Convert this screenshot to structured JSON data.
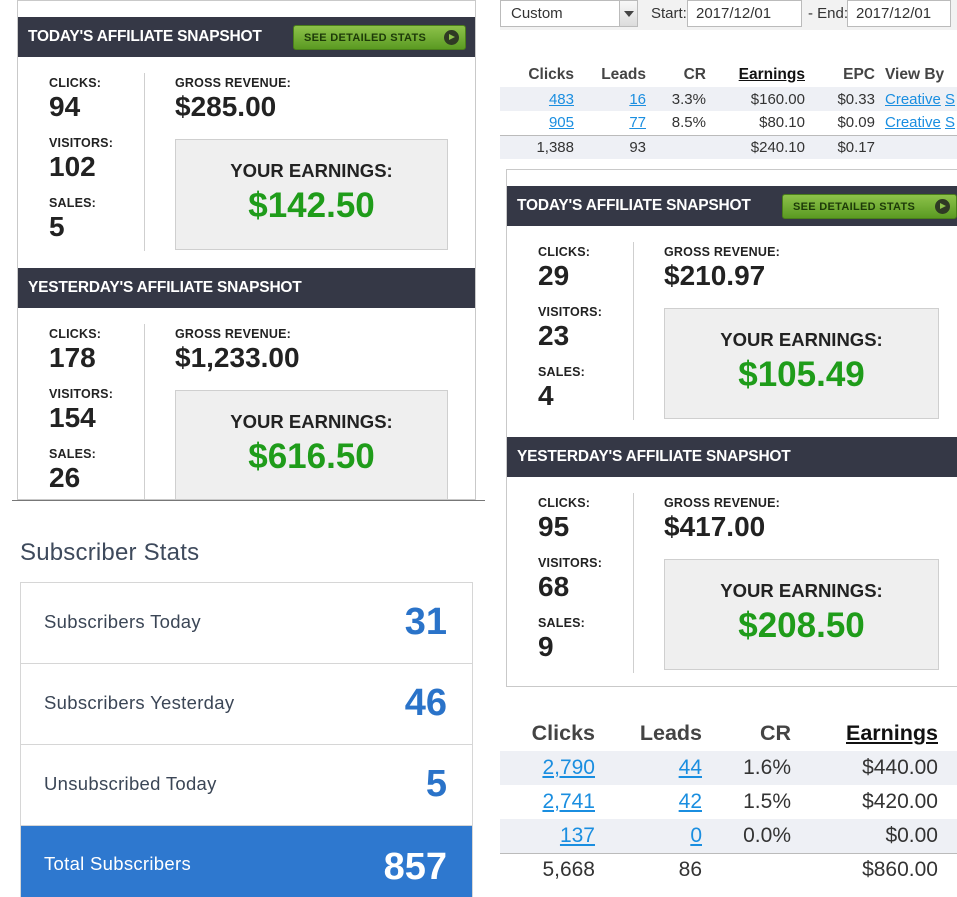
{
  "colors": {
    "header_dark": "#353846",
    "earnings_green": "#1f9c1a",
    "link_blue": "#1a8ee0",
    "subscriber_blue": "#2a73c9"
  },
  "left_panel": {
    "today": {
      "title": "TODAY'S AFFILIATE SNAPSHOT",
      "button": "SEE DETAILED STATS",
      "clicks_label": "CLICKS:",
      "clicks": "94",
      "visitors_label": "VISITORS:",
      "visitors": "102",
      "sales_label": "SALES:",
      "sales": "5",
      "gross_label": "GROSS REVENUE:",
      "gross": "$285.00",
      "earnings_label": "YOUR EARNINGS:",
      "earnings": "$142.50"
    },
    "yesterday": {
      "title": "YESTERDAY'S AFFILIATE SNAPSHOT",
      "clicks_label": "CLICKS:",
      "clicks": "178",
      "visitors_label": "VISITORS:",
      "visitors": "154",
      "sales_label": "SALES:",
      "sales": "26",
      "gross_label": "GROSS REVENUE:",
      "gross": "$1,233.00",
      "earnings_label": "YOUR EARNINGS:",
      "earnings": "$616.50"
    }
  },
  "filter": {
    "range_select": "Custom",
    "start_label": "Start:",
    "start_date": "2017/12/01",
    "end_label": "- End:",
    "end_date": "2017/12/01"
  },
  "table_top": {
    "headers": [
      "Clicks",
      "Leads",
      "CR",
      "Earnings",
      "EPC",
      "View By"
    ],
    "rows": [
      [
        "483",
        "16",
        "3.3%",
        "$160.00",
        "$0.33",
        "Creative",
        "S"
      ],
      [
        "905",
        "77",
        "8.5%",
        "$80.10",
        "$0.09",
        "Creative",
        "S"
      ]
    ],
    "total": [
      "1,388",
      "93",
      "",
      "$240.10",
      "$0.17"
    ]
  },
  "right_panel": {
    "today": {
      "title": "TODAY'S AFFILIATE SNAPSHOT",
      "button": "SEE DETAILED STATS",
      "clicks_label": "CLICKS:",
      "clicks": "29",
      "visitors_label": "VISITORS:",
      "visitors": "23",
      "sales_label": "SALES:",
      "sales": "4",
      "gross_label": "GROSS REVENUE:",
      "gross": "$210.97",
      "earnings_label": "YOUR EARNINGS:",
      "earnings": "$105.49"
    },
    "yesterday": {
      "title": "YESTERDAY'S AFFILIATE SNAPSHOT",
      "clicks_label": "CLICKS:",
      "clicks": "95",
      "visitors_label": "VISITORS:",
      "visitors": "68",
      "sales_label": "SALES:",
      "sales": "9",
      "gross_label": "GROSS REVENUE:",
      "gross": "$417.00",
      "earnings_label": "YOUR EARNINGS:",
      "earnings": "$208.50"
    }
  },
  "table_bottom": {
    "headers": [
      "Clicks",
      "Leads",
      "CR",
      "Earnings"
    ],
    "rows": [
      [
        "2,790",
        "44",
        "1.6%",
        "$440.00"
      ],
      [
        "2,741",
        "42",
        "1.5%",
        "$420.00"
      ],
      [
        "137",
        "0",
        "0.0%",
        "$0.00"
      ]
    ],
    "total": [
      "5,668",
      "86",
      "",
      "$860.00"
    ]
  },
  "subscriber_stats": {
    "title": "Subscriber Stats",
    "today_label": "Subscribers Today",
    "today": "31",
    "yesterday_label": "Subscribers Yesterday",
    "yesterday": "46",
    "unsub_label": "Unsubscribed Today",
    "unsub": "5",
    "total_label": "Total Subscribers",
    "total": "857"
  }
}
